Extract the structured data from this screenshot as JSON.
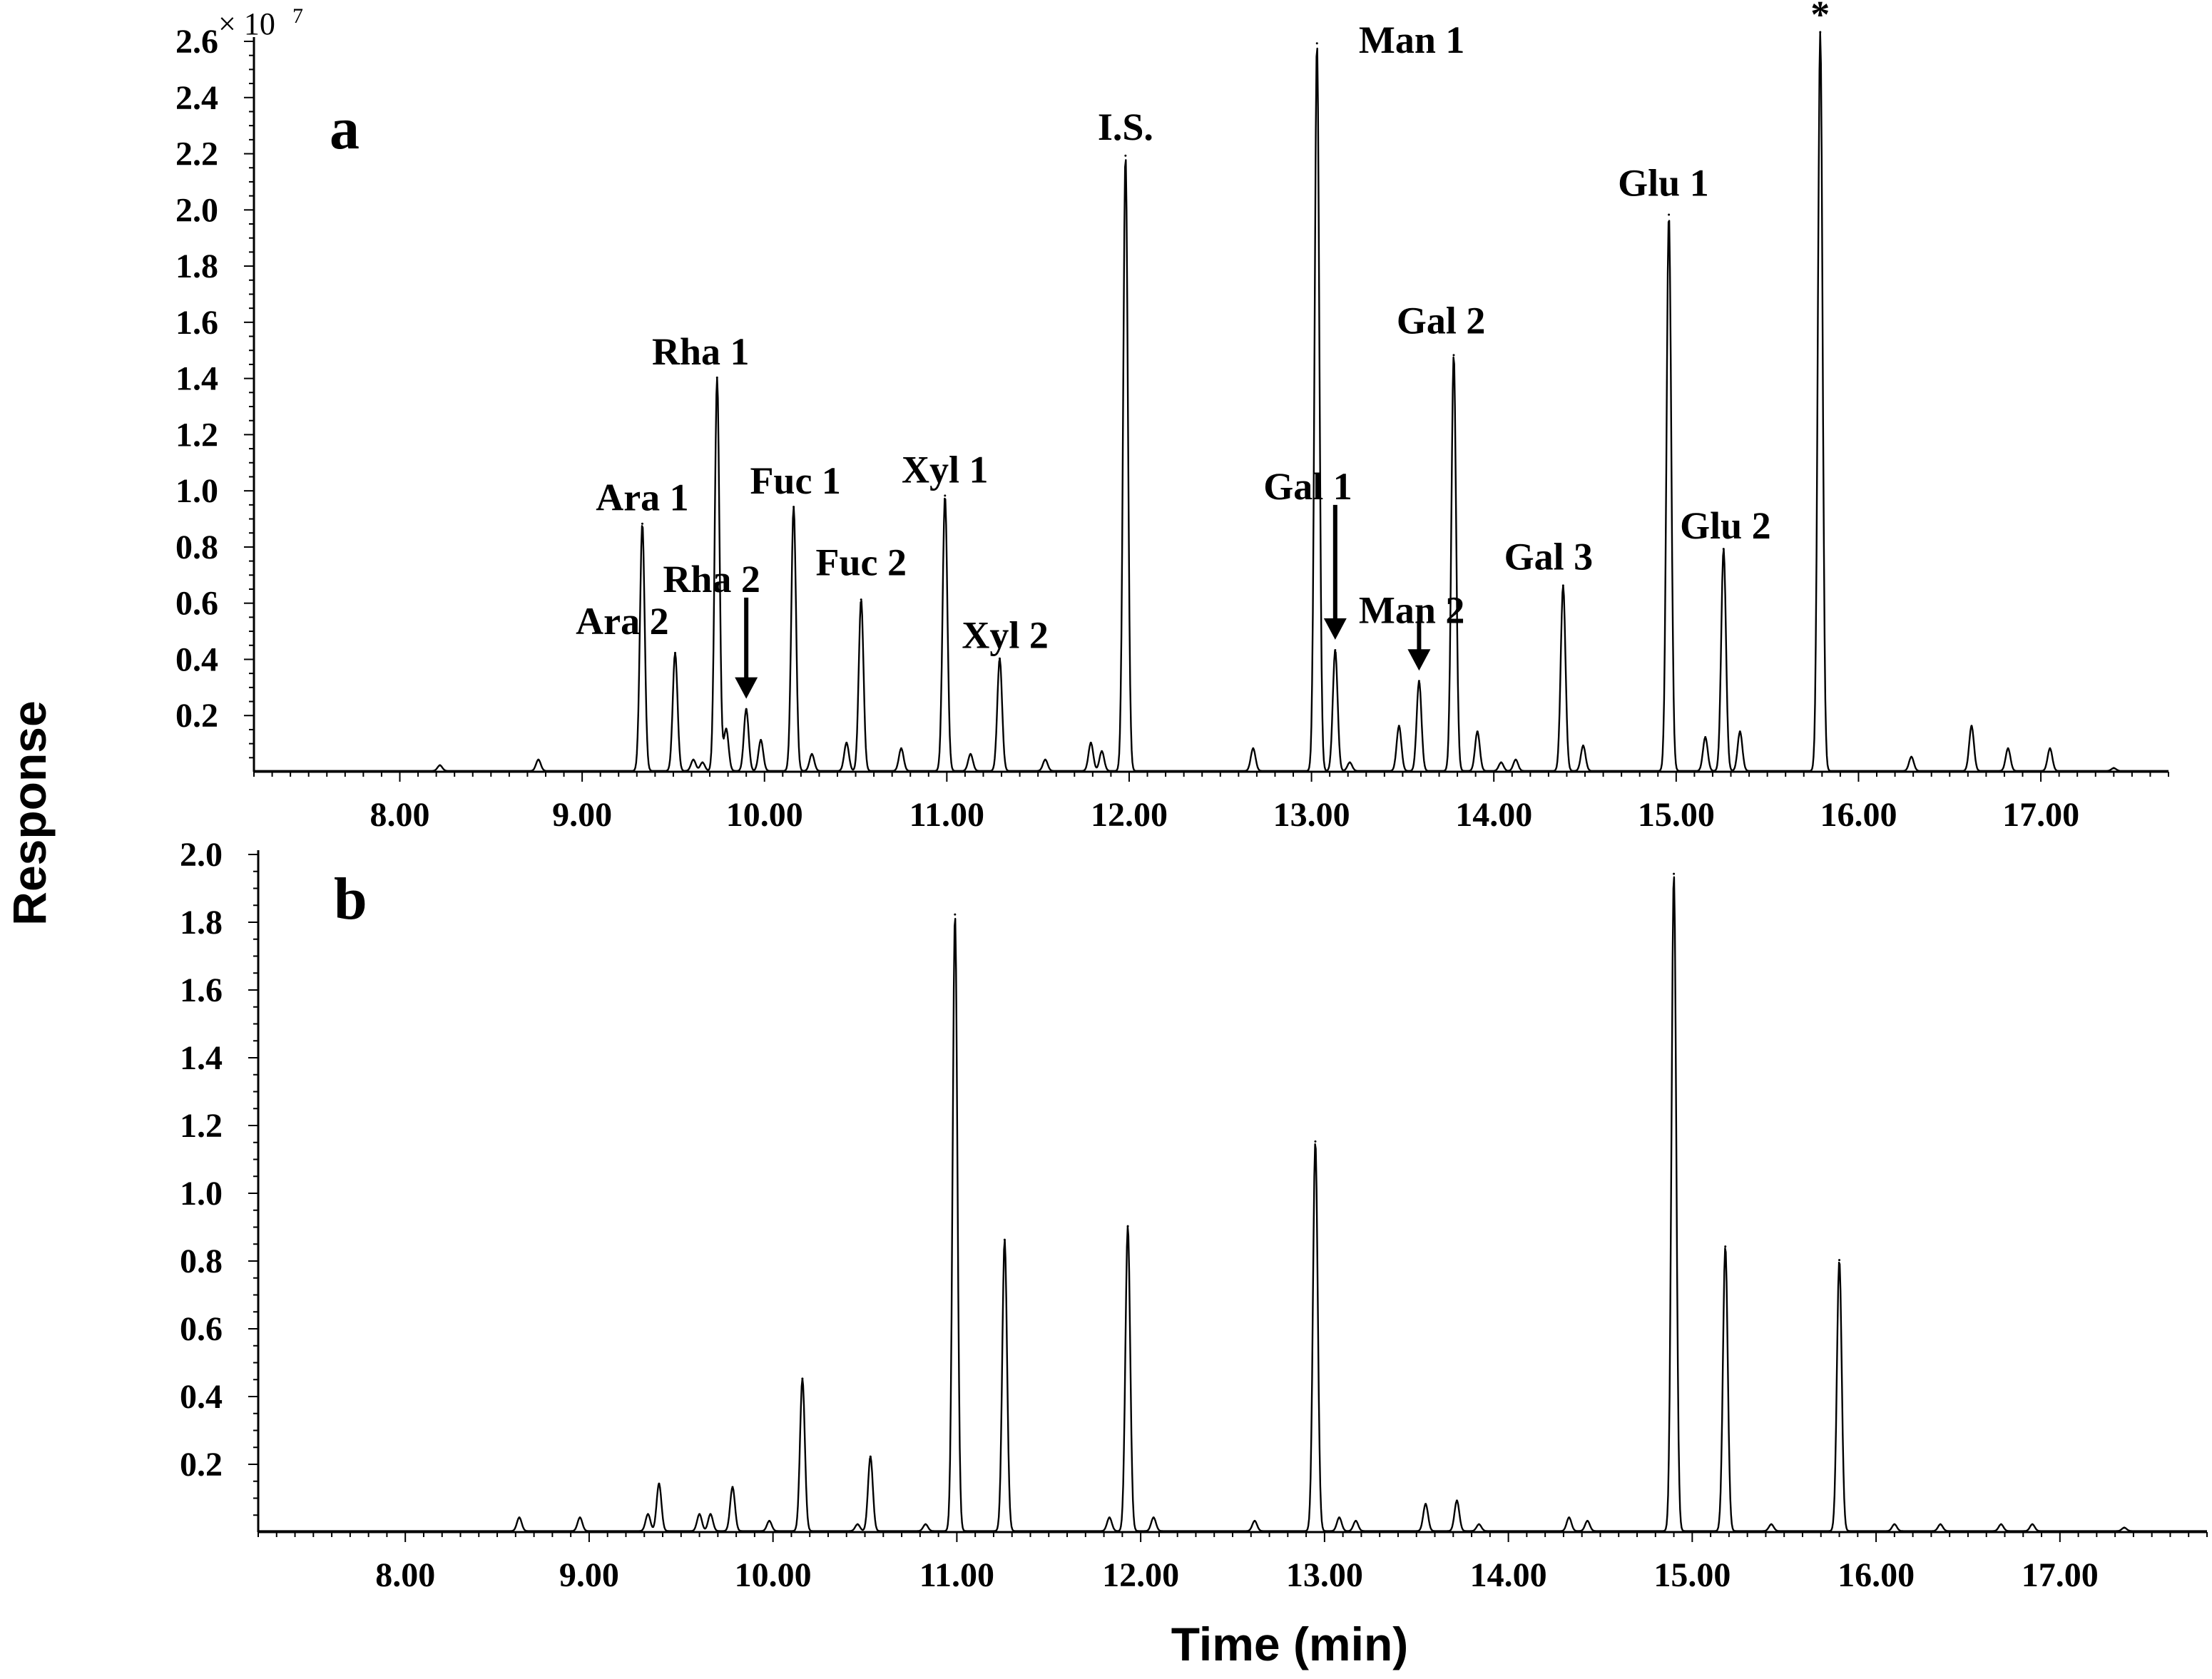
{
  "chart_data": {
    "type": "line",
    "ylabel": "Response",
    "xlabel": "Time (min)",
    "y_multiplier": {
      "base": "× 10",
      "exponent": "7"
    },
    "panels": [
      {
        "id": "a",
        "label": "a",
        "xlim": [
          7.2,
          17.7
        ],
        "ylim": [
          0,
          2.6
        ],
        "xticks": [
          8,
          9,
          10,
          11,
          12,
          13,
          14,
          15,
          16,
          17
        ],
        "xtick_labels": [
          "8.00",
          "9.00",
          "10.00",
          "11.00",
          "12.00",
          "13.00",
          "14.00",
          "15.00",
          "16.00",
          "17.00"
        ],
        "yticks": [
          0.2,
          0.4,
          0.6,
          0.8,
          1.0,
          1.2,
          1.4,
          1.6,
          1.8,
          2.0,
          2.2,
          2.4,
          2.6
        ],
        "ytick_labels": [
          "0.2",
          "0.4",
          "0.6",
          "0.8",
          "1.0",
          "1.2",
          "1.4",
          "1.6",
          "1.8",
          "2.0",
          "2.2",
          "2.4",
          "2.6"
        ],
        "peaks": [
          {
            "t": 8.22,
            "h": 0.02
          },
          {
            "t": 8.76,
            "h": 0.04
          },
          {
            "t": 9.33,
            "h": 0.88
          },
          {
            "t": 9.51,
            "h": 0.42
          },
          {
            "t": 9.61,
            "h": 0.04
          },
          {
            "t": 9.66,
            "h": 0.03
          },
          {
            "t": 9.74,
            "h": 1.4
          },
          {
            "t": 9.79,
            "h": 0.15
          },
          {
            "t": 9.9,
            "h": 0.22
          },
          {
            "t": 9.98,
            "h": 0.11
          },
          {
            "t": 10.16,
            "h": 0.94
          },
          {
            "t": 10.26,
            "h": 0.06
          },
          {
            "t": 10.45,
            "h": 0.1
          },
          {
            "t": 10.53,
            "h": 0.61
          },
          {
            "t": 10.75,
            "h": 0.08
          },
          {
            "t": 10.99,
            "h": 0.98
          },
          {
            "t": 11.13,
            "h": 0.06
          },
          {
            "t": 11.29,
            "h": 0.4
          },
          {
            "t": 11.54,
            "h": 0.04
          },
          {
            "t": 11.79,
            "h": 0.1
          },
          {
            "t": 11.85,
            "h": 0.07
          },
          {
            "t": 11.98,
            "h": 2.19
          },
          {
            "t": 12.68,
            "h": 0.08
          },
          {
            "t": 13.03,
            "h": 2.59
          },
          {
            "t": 13.13,
            "h": 0.43
          },
          {
            "t": 13.21,
            "h": 0.03
          },
          {
            "t": 13.48,
            "h": 0.16
          },
          {
            "t": 13.59,
            "h": 0.32
          },
          {
            "t": 13.78,
            "h": 1.48
          },
          {
            "t": 13.91,
            "h": 0.14
          },
          {
            "t": 14.04,
            "h": 0.03
          },
          {
            "t": 14.12,
            "h": 0.04
          },
          {
            "t": 14.38,
            "h": 0.66
          },
          {
            "t": 14.49,
            "h": 0.09
          },
          {
            "t": 14.96,
            "h": 1.98
          },
          {
            "t": 15.16,
            "h": 0.12
          },
          {
            "t": 15.26,
            "h": 0.79
          },
          {
            "t": 15.35,
            "h": 0.14
          },
          {
            "t": 15.79,
            "h": 2.63
          },
          {
            "t": 16.29,
            "h": 0.05
          },
          {
            "t": 16.62,
            "h": 0.16
          },
          {
            "t": 16.82,
            "h": 0.08
          },
          {
            "t": 17.05,
            "h": 0.08
          },
          {
            "t": 17.4,
            "h": 0.01
          }
        ],
        "labels": [
          {
            "text": "Ara 1",
            "t": 9.33,
            "y": 0.93
          },
          {
            "text": "Ara 2",
            "t": 9.22,
            "y": 0.49
          },
          {
            "text": "Rha 1",
            "t": 9.65,
            "y": 1.45
          },
          {
            "text": "Rha 2",
            "t": 9.71,
            "y": 0.64
          },
          {
            "text": "Fuc 1",
            "t": 10.17,
            "y": 0.99
          },
          {
            "text": "Fuc 2",
            "t": 10.53,
            "y": 0.7
          },
          {
            "text": "Xyl 1",
            "t": 10.99,
            "y": 1.03
          },
          {
            "text": "Xyl 2",
            "t": 11.32,
            "y": 0.44
          },
          {
            "text": "I.S.",
            "t": 11.98,
            "y": 2.25
          },
          {
            "text": "Man 1",
            "t": 13.55,
            "y": 2.56
          },
          {
            "text": "Gal 1",
            "t": 12.98,
            "y": 0.97
          },
          {
            "text": "Man 2",
            "t": 13.55,
            "y": 0.53
          },
          {
            "text": "Gal 2",
            "t": 13.71,
            "y": 1.56
          },
          {
            "text": "Gal 3",
            "t": 14.3,
            "y": 0.72
          },
          {
            "text": "Glu 1",
            "t": 14.93,
            "y": 2.05
          },
          {
            "text": "Glu 2",
            "t": 15.27,
            "y": 0.83
          },
          {
            "text": "*",
            "t": 15.79,
            "y": 2.65
          }
        ],
        "arrows": [
          {
            "t": 9.9,
            "y_from": 0.62,
            "y_to": 0.26
          },
          {
            "t": 13.13,
            "y_from": 0.95,
            "y_to": 0.47
          },
          {
            "t": 13.59,
            "y_from": 0.53,
            "y_to": 0.36
          }
        ]
      },
      {
        "id": "b",
        "label": "b",
        "xlim": [
          7.2,
          17.8
        ],
        "ylim": [
          0,
          2.0
        ],
        "xticks": [
          8,
          9,
          10,
          11,
          12,
          13,
          14,
          15,
          16,
          17
        ],
        "xtick_labels": [
          "8.00",
          "9.00",
          "10.00",
          "11.00",
          "12.00",
          "13.00",
          "14.00",
          "15.00",
          "16.00",
          "17.00"
        ],
        "yticks": [
          0.2,
          0.4,
          0.6,
          0.8,
          1.0,
          1.2,
          1.4,
          1.6,
          1.8,
          2.0
        ],
        "ytick_labels": [
          "0.2",
          "0.4",
          "0.6",
          "0.8",
          "1.0",
          "1.2",
          "1.4",
          "1.6",
          "1.8",
          "2.0"
        ],
        "peaks": [
          {
            "t": 8.62,
            "h": 0.04
          },
          {
            "t": 8.95,
            "h": 0.04
          },
          {
            "t": 9.32,
            "h": 0.05
          },
          {
            "t": 9.38,
            "h": 0.14
          },
          {
            "t": 9.6,
            "h": 0.05
          },
          {
            "t": 9.66,
            "h": 0.05
          },
          {
            "t": 9.78,
            "h": 0.13
          },
          {
            "t": 9.98,
            "h": 0.03
          },
          {
            "t": 10.16,
            "h": 0.45
          },
          {
            "t": 10.46,
            "h": 0.02
          },
          {
            "t": 10.53,
            "h": 0.22
          },
          {
            "t": 10.83,
            "h": 0.02
          },
          {
            "t": 10.99,
            "h": 1.82
          },
          {
            "t": 11.26,
            "h": 0.86
          },
          {
            "t": 11.83,
            "h": 0.04
          },
          {
            "t": 11.93,
            "h": 0.9
          },
          {
            "t": 12.07,
            "h": 0.04
          },
          {
            "t": 12.62,
            "h": 0.03
          },
          {
            "t": 12.95,
            "h": 1.15
          },
          {
            "t": 13.08,
            "h": 0.04
          },
          {
            "t": 13.17,
            "h": 0.03
          },
          {
            "t": 13.55,
            "h": 0.08
          },
          {
            "t": 13.72,
            "h": 0.09
          },
          {
            "t": 13.84,
            "h": 0.02
          },
          {
            "t": 14.33,
            "h": 0.04
          },
          {
            "t": 14.43,
            "h": 0.03
          },
          {
            "t": 14.9,
            "h": 1.94
          },
          {
            "t": 15.18,
            "h": 0.84
          },
          {
            "t": 15.43,
            "h": 0.02
          },
          {
            "t": 15.8,
            "h": 0.8
          },
          {
            "t": 16.1,
            "h": 0.02
          },
          {
            "t": 16.35,
            "h": 0.02
          },
          {
            "t": 16.68,
            "h": 0.02
          },
          {
            "t": 16.85,
            "h": 0.02
          },
          {
            "t": 17.35,
            "h": 0.01
          }
        ]
      }
    ]
  }
}
